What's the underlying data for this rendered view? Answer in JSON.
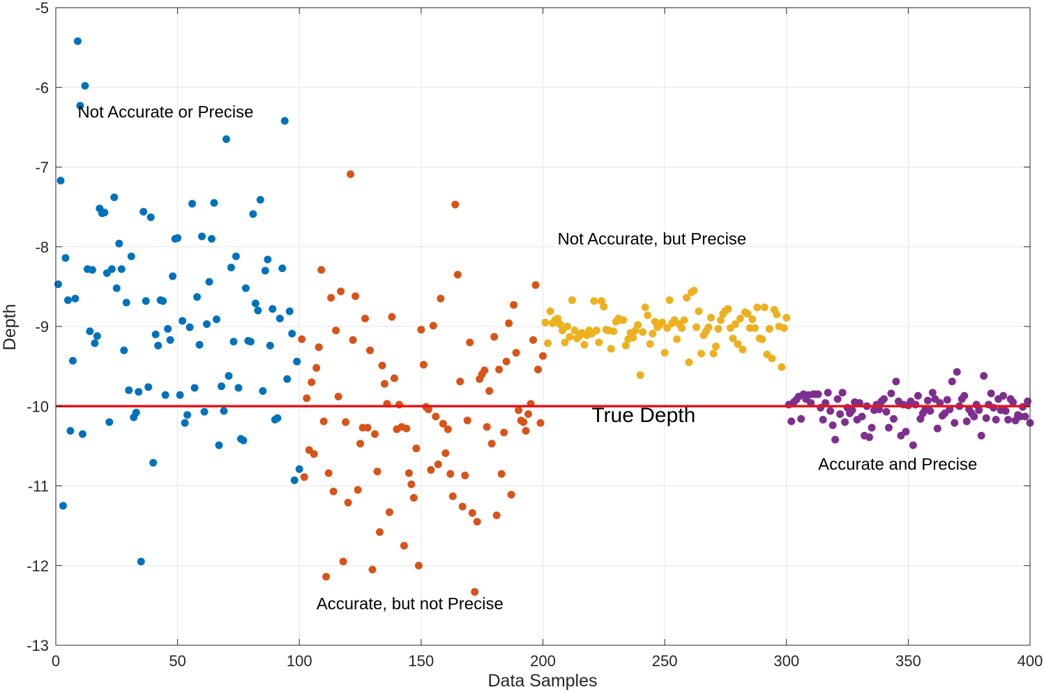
{
  "chart_data": {
    "type": "scatter",
    "title": "",
    "xlabel": "Data Samples",
    "ylabel": "Depth",
    "xlim": [
      0,
      400
    ],
    "ylim": [
      -13,
      -5
    ],
    "grid": true,
    "xticks": [
      "0",
      "50",
      "100",
      "150",
      "200",
      "250",
      "300",
      "350",
      "400"
    ],
    "yticks": [
      "-5",
      "-6",
      "-7",
      "-8",
      "-9",
      "-10",
      "-11",
      "-12",
      "-13"
    ],
    "reference_line": {
      "label": "True Depth",
      "y": -10,
      "color": "#e8141c"
    },
    "annotations": [
      {
        "text": "Not Accurate or Precise",
        "x": 9,
        "y": -6.38
      },
      {
        "text": "Not Accurate, but Precise",
        "x": 206,
        "y": -7.97
      },
      {
        "text": "True Depth",
        "x": 220,
        "y": -10.2
      },
      {
        "text": "Accurate, but not Precise",
        "x": 107,
        "y": -12.55
      },
      {
        "text": "Accurate and Precise",
        "x": 313,
        "y": -10.8
      }
    ],
    "series": [
      {
        "color": "#0072BD",
        "x_start": 1,
        "y": [
          -8.47,
          -7.17,
          -11.25,
          -8.14,
          -8.67,
          -10.31,
          -9.43,
          -8.65,
          -5.42,
          -6.23,
          -10.35,
          -5.98,
          -8.28,
          -9.06,
          -8.29,
          -9.21,
          -9.12,
          -7.52,
          -7.58,
          -7.57,
          -8.33,
          -10.2,
          -8.28,
          -7.38,
          -8.52,
          -7.96,
          -8.28,
          -9.3,
          -8.7,
          -9.8,
          -8.12,
          -10.14,
          -10.08,
          -9.82,
          -11.95,
          -7.56,
          -8.68,
          -9.76,
          -7.63,
          -10.71,
          -9.1,
          -9.24,
          -8.67,
          -8.68,
          -9.86,
          -9.03,
          -9.17,
          -8.37,
          -7.9,
          -7.89,
          -9.86,
          -8.93,
          -10.21,
          -10.11,
          -9.01,
          -7.46,
          -9.77,
          -8.63,
          -9.23,
          -7.87,
          -10.07,
          -8.97,
          -8.44,
          -7.9,
          -7.45,
          -8.91,
          -10.49,
          -9.75,
          -10.06,
          -6.65,
          -9.62,
          -8.26,
          -9.19,
          -8.12,
          -9.77,
          -10.41,
          -10.43,
          -8.52,
          -9.18,
          -9.19,
          -7.59,
          -8.71,
          -8.8,
          -7.41,
          -9.81,
          -8.3,
          -8.16,
          -9.24,
          -8.78,
          -10.17,
          -10.15,
          -8.9,
          -8.27,
          -6.42,
          -9.66,
          -8.81,
          -9.09,
          -10.93,
          -9.44,
          -10.79
        ]
      },
      {
        "color": "#D95319",
        "x_start": 101,
        "y": [
          -9.16,
          -10.89,
          -9.9,
          -10.55,
          -9.7,
          -10.6,
          -9.52,
          -9.26,
          -8.29,
          -10.19,
          -12.14,
          -10.84,
          -8.64,
          -11.07,
          -9.05,
          -9.88,
          -8.56,
          -11.95,
          -10.2,
          -11.21,
          -7.09,
          -9.17,
          -8.62,
          -11.05,
          -10.47,
          -10.27,
          -8.9,
          -10.27,
          -9.3,
          -12.05,
          -10.35,
          -10.82,
          -11.58,
          -9.49,
          -9.72,
          -9.97,
          -11.33,
          -8.88,
          -9.65,
          -10.29,
          -9.98,
          -10.26,
          -11.75,
          -10.28,
          -10.84,
          -10.98,
          -11.15,
          -10.53,
          -12.0,
          -9.04,
          -9.48,
          -10.01,
          -10.04,
          -10.8,
          -8.99,
          -10.13,
          -10.73,
          -8.65,
          -10.22,
          -10.59,
          -10.29,
          -10.85,
          -11.13,
          -7.47,
          -8.35,
          -9.69,
          -11.26,
          -10.87,
          -10.18,
          -9.2,
          -11.34,
          -12.33,
          -11.45,
          -9.66,
          -9.6,
          -9.55,
          -10.26,
          -9.81,
          -10.47,
          -9.13,
          -11.37,
          -9.54,
          -10.85,
          -10.33,
          -9.44,
          -8.96,
          -11.11,
          -8.73,
          -9.33,
          -10.05,
          -10.18,
          -10.2,
          -10.31,
          -10.1,
          -9.97,
          -9.17,
          -8.48,
          -9.54,
          -10.21,
          -9.37
        ]
      },
      {
        "color": "#EDB120",
        "x_start": 201,
        "y": [
          -8.95,
          -9.21,
          -8.81,
          -8.96,
          -8.92,
          -8.9,
          -8.97,
          -9.05,
          -9.2,
          -9.0,
          -9.13,
          -8.67,
          -9.05,
          -9.15,
          -9.12,
          -9.08,
          -9.23,
          -9.11,
          -9.05,
          -9.09,
          -8.68,
          -9.05,
          -9.2,
          -8.68,
          -8.75,
          -9.04,
          -9.05,
          -9.28,
          -9.06,
          -8.94,
          -8.9,
          -8.92,
          -8.92,
          -9.24,
          -9.16,
          -9.08,
          -9.14,
          -9.05,
          -8.98,
          -9.61,
          -9.07,
          -8.76,
          -8.86,
          -9.22,
          -9.09,
          -8.94,
          -9.01,
          -8.98,
          -8.95,
          -9.33,
          -9.02,
          -8.67,
          -8.96,
          -8.92,
          -9.16,
          -8.97,
          -9.02,
          -8.92,
          -8.64,
          -9.45,
          -8.57,
          -8.55,
          -9.01,
          -8.81,
          -9.34,
          -9.11,
          -9.06,
          -9.01,
          -8.89,
          -9.34,
          -9.25,
          -9.03,
          -8.92,
          -8.84,
          -8.8,
          -8.78,
          -9.02,
          -9.15,
          -8.97,
          -9.22,
          -8.9,
          -9.29,
          -8.82,
          -8.84,
          -9.02,
          -8.91,
          -9.02,
          -8.76,
          -9.15,
          -9.16,
          -8.76,
          -9.35,
          -9.03,
          -9.4,
          -8.79,
          -8.85,
          -9.0,
          -9.51,
          -9.02,
          -8.89
        ]
      },
      {
        "color": "#7E2F8E",
        "x_start": 301,
        "y": [
          -9.98,
          -10.19,
          -9.95,
          -9.92,
          -9.88,
          -10.16,
          -9.85,
          -9.91,
          -9.86,
          -9.96,
          -9.85,
          -9.85,
          -9.85,
          -10.02,
          -10.17,
          -9.96,
          -9.83,
          -10.06,
          -10.24,
          -10.42,
          -9.91,
          -10.1,
          -9.83,
          -10.2,
          -10.02,
          -10.09,
          -10.05,
          -9.95,
          -10.17,
          -9.96,
          -10.13,
          -10.37,
          -10.0,
          -10.39,
          -10.27,
          -10.05,
          -9.98,
          -10.04,
          -9.94,
          -9.91,
          -10.07,
          -10.27,
          -9.84,
          -10.16,
          -9.69,
          -9.94,
          -10.37,
          -9.98,
          -10.32,
          -9.99,
          -9.94,
          -10.49,
          -9.98,
          -9.87,
          -10.16,
          -10.09,
          -10.04,
          -9.93,
          -10.06,
          -9.83,
          -9.91,
          -10.28,
          -9.96,
          -10.12,
          -10.09,
          -9.92,
          -10.04,
          -9.69,
          -10.21,
          -9.57,
          -10.0,
          -9.91,
          -9.87,
          -10.19,
          -10.04,
          -10.09,
          -10.13,
          -9.98,
          -10.05,
          -10.37,
          -9.62,
          -10.15,
          -9.98,
          -9.84,
          -10.02,
          -10.17,
          -9.91,
          -10.05,
          -9.87,
          -10.06,
          -10.17,
          -9.91,
          -9.95,
          -10.18,
          -10.11,
          -10.13,
          -10.01,
          -10.13,
          -9.94,
          -10.21
        ]
      }
    ]
  }
}
